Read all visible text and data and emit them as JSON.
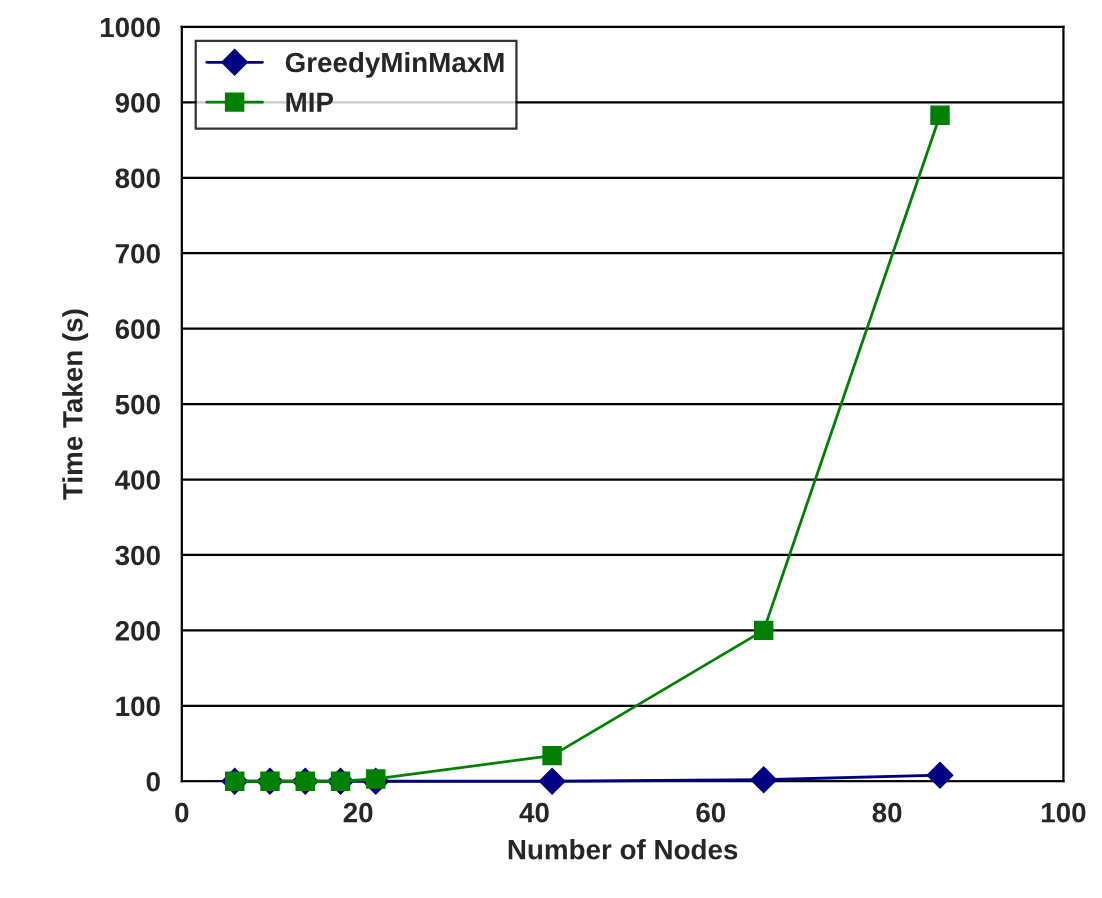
{
  "chart_data": {
    "type": "line",
    "xlabel": "Number of Nodes",
    "ylabel": "Time Taken (s)",
    "x": [
      6,
      10,
      14,
      18,
      22,
      42,
      66,
      86
    ],
    "series": [
      {
        "name": "GreedyMinMaxM",
        "color": "#000080",
        "values": [
          0,
          0,
          0,
          0,
          0,
          0,
          2,
          8
        ],
        "marker": "diamond"
      },
      {
        "name": "MIP",
        "color": "#008000",
        "values": [
          0,
          0,
          0,
          0,
          3,
          34,
          200,
          883
        ],
        "marker": "square"
      }
    ],
    "xlim": [
      0,
      100
    ],
    "xticks": [
      0,
      20,
      40,
      60,
      80,
      100
    ],
    "ylim": [
      0,
      1000
    ],
    "yticks": [
      0,
      100,
      200,
      300,
      400,
      500,
      600,
      700,
      800,
      900,
      1000
    ],
    "grid": "y",
    "legend": "top left",
    "line_style": "solid"
  }
}
